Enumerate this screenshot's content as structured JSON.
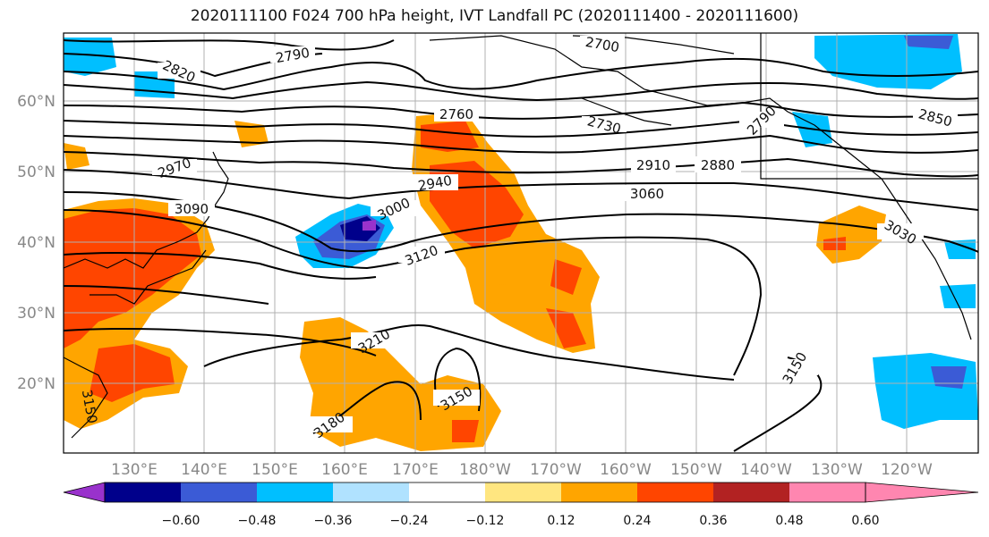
{
  "title": "2020111100 F024 700 hPa height, IVT Landfall PC (2020111400 - 2020111600)",
  "lat_labels": [
    "60°N",
    "50°N",
    "40°N",
    "30°N",
    "20°N"
  ],
  "lon_labels": [
    "130°E",
    "140°E",
    "150°E",
    "160°E",
    "170°E",
    "180°W",
    "170°W",
    "160°W",
    "150°W",
    "140°W",
    "130°W",
    "120°W"
  ],
  "colorbar": {
    "ticks": [
      "−0.60",
      "−0.48",
      "−0.36",
      "−0.24",
      "−0.12",
      "0.12",
      "0.24",
      "0.36",
      "0.48",
      "0.60"
    ],
    "colors": [
      "#9932cc",
      "#00008b",
      "#3b5bd6",
      "#00bfff",
      "#b0e2ff",
      "#ffffff",
      "#ffe680",
      "#ffa500",
      "#ff4500",
      "#b22222",
      "#ff86b0"
    ]
  },
  "contour_labels": [
    "2820",
    "2790",
    "2700",
    "2760",
    "2730",
    "2790",
    "2850",
    "2970",
    "2910",
    "2880",
    "2940",
    "3090",
    "3060",
    "3000",
    "3030",
    "3120",
    "3210",
    "3150",
    "3180",
    "3150",
    "3150"
  ]
}
